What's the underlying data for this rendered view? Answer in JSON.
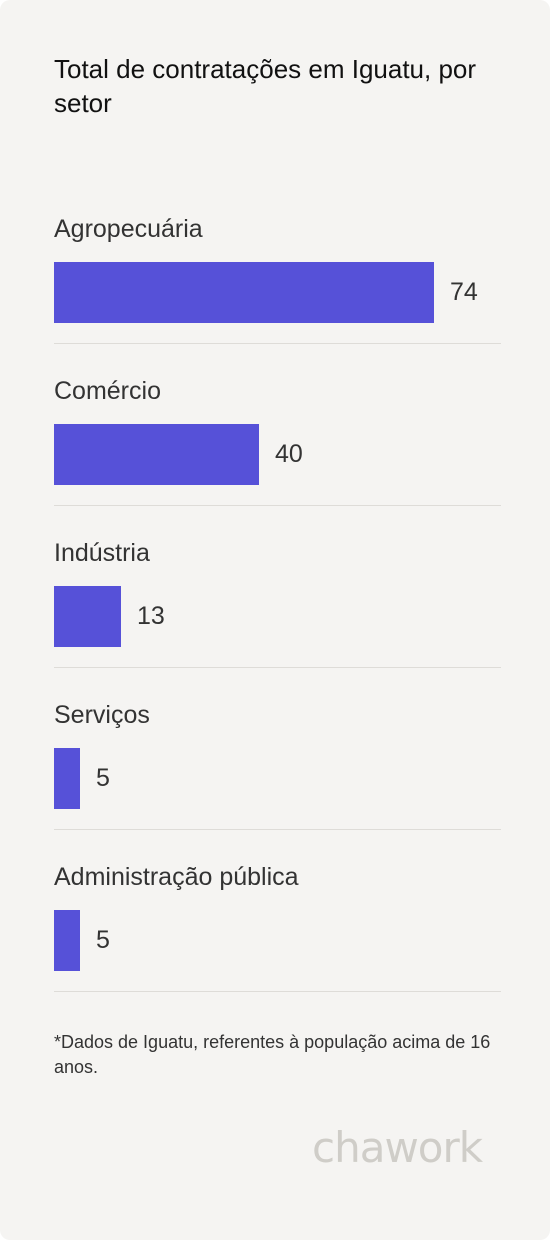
{
  "title": "Total de contratações em Iguatu, por setor",
  "chart_data": {
    "type": "bar",
    "orientation": "horizontal",
    "title": "Total de contratações em Iguatu, por setor",
    "categories": [
      "Agropecuária",
      "Comércio",
      "Indústria",
      "Serviços",
      "Administração pública"
    ],
    "values": [
      74,
      40,
      13,
      5,
      5
    ],
    "xlim": [
      0,
      74
    ],
    "bar_color": "#5651d8",
    "grid": false,
    "legend": "none"
  },
  "footnote": "*Dados de Iguatu, referentes à população acima de 16 anos.",
  "logo": "chawork"
}
